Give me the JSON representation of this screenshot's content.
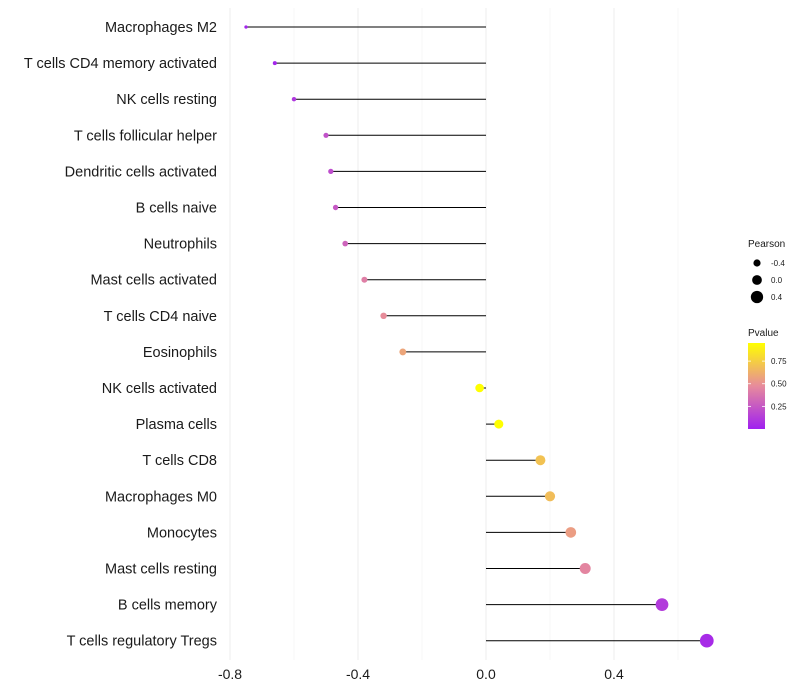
{
  "chart_data": {
    "type": "lollipop",
    "title": "",
    "xlabel": "",
    "ylabel": "",
    "xlim": [
      -0.8,
      0.75
    ],
    "xticks": [
      -0.8,
      -0.4,
      0.0,
      0.4
    ],
    "xtick_labels": [
      "-0.8",
      "-0.4",
      "0.0",
      "0.4"
    ],
    "grid": true,
    "categories": [
      "Macrophages M2",
      "T cells CD4 memory activated",
      "NK cells resting",
      "T cells follicular helper",
      "Dendritic cells activated",
      "B cells naive",
      "Neutrophils",
      "Mast cells activated",
      "T cells CD4 naive",
      "Eosinophils",
      "NK cells activated",
      "Plasma cells",
      "T cells CD8",
      "Macrophages M0",
      "Monocytes",
      "Mast cells resting",
      "B cells memory",
      "T cells regulatory  Tregs"
    ],
    "values": [
      -0.75,
      -0.66,
      -0.6,
      -0.5,
      -0.485,
      -0.47,
      -0.44,
      -0.38,
      -0.32,
      -0.26,
      -0.02,
      0.04,
      0.17,
      0.2,
      0.265,
      0.31,
      0.55,
      0.69
    ],
    "pvalues": [
      0.02,
      0.03,
      0.1,
      0.22,
      0.2,
      0.25,
      0.3,
      0.42,
      0.48,
      0.58,
      0.95,
      0.95,
      0.7,
      0.68,
      0.55,
      0.45,
      0.12,
      0.05
    ],
    "legend_size": {
      "title": "Pearson",
      "entries": [
        "-0.4",
        "0.0",
        "0.4"
      ],
      "values": [
        -0.4,
        0.0,
        0.4
      ],
      "position": "right"
    },
    "legend_color": {
      "title": "Pvalue",
      "ticks": [
        "0.75",
        "0.50",
        "0.25"
      ],
      "tick_values": [
        0.75,
        0.5,
        0.25
      ],
      "range": [
        0.0,
        0.95
      ],
      "low_color": "#a020f0",
      "mid_color": "#e78b9c",
      "high_color": "#ffff00",
      "position": "right"
    }
  }
}
